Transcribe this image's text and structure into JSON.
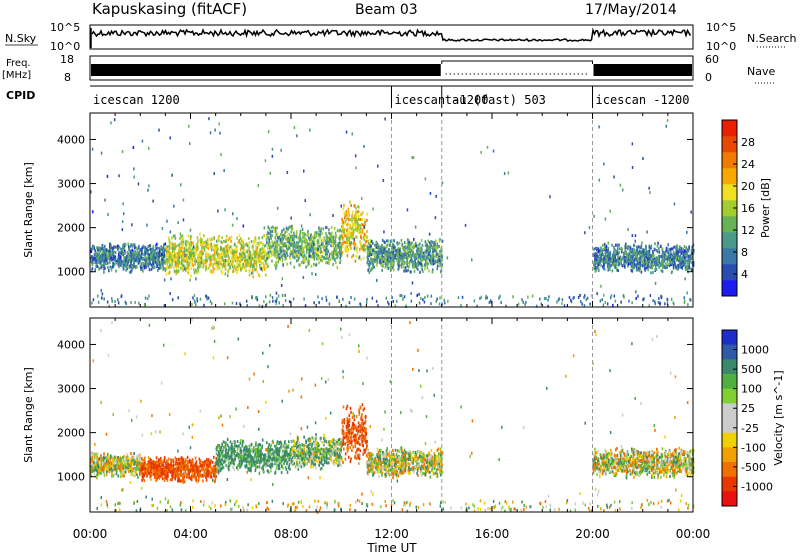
{
  "header": {
    "station": "Kapuskasing (fitACF)",
    "beam": "Beam 03",
    "date": "17/May/2014"
  },
  "noise_panel": {
    "left_label": "N.Sky",
    "left_ticks": [
      "10^5",
      "10^0"
    ],
    "right_ticks": [
      "10^5",
      "10^0"
    ],
    "right_label": "N.Search"
  },
  "freq_panel": {
    "label_line1": "Freq.",
    "label_line2": "[MHz]",
    "left_ticks": [
      "18",
      "8"
    ],
    "right_ticks": [
      "60",
      "0"
    ],
    "right_label": "Nave"
  },
  "cpid_panel": {
    "label": "CPID",
    "segments": [
      {
        "label": "icescan 1200",
        "start_hour": 0,
        "end_hour": 12
      },
      {
        "label": "icescan -1200",
        "start_hour": 12,
        "end_hour": 14
      },
      {
        "label": "tau (fast) 503",
        "start_hour": 14,
        "end_hour": 20
      },
      {
        "label": "icescan -1200",
        "start_hour": 20,
        "end_hour": 24
      }
    ]
  },
  "x_axis": {
    "label": "Time UT",
    "ticks": [
      "00:00",
      "04:00",
      "08:00",
      "12:00",
      "16:00",
      "20:00",
      "00:00"
    ]
  },
  "power_colorbar": {
    "label": "Power [dB]",
    "ticks": [
      "4",
      "8",
      "12",
      "16",
      "20",
      "24",
      "28"
    ],
    "colors": [
      "#1c1cf0",
      "#2a4bb0",
      "#3a78a8",
      "#4a9a8a",
      "#66b356",
      "#a4cc2e",
      "#f0e020",
      "#f7a900",
      "#f07b00",
      "#e84800",
      "#e82000"
    ]
  },
  "velocity_colorbar": {
    "label": "Velocity [m s^-1]",
    "ticks": [
      "1000",
      "500",
      "100",
      "25",
      "-25",
      "-100",
      "-500",
      "-1000"
    ],
    "colors": [
      "#1e2cc8",
      "#2e5aa8",
      "#3a8a6a",
      "#4fb040",
      "#80d030",
      "#cccccc",
      "#cccccc",
      "#f0d000",
      "#f0a000",
      "#f07000",
      "#e83800",
      "#e81010"
    ]
  },
  "chart_data": [
    {
      "type": "heatmap",
      "title": "Power [dB]",
      "xlabel": "Time UT",
      "ylabel": "Slant Range [km]",
      "xlim_hours": [
        0,
        24
      ],
      "ylim_km": [
        200,
        4600
      ],
      "yticks": [
        1000,
        2000,
        3000,
        4000
      ],
      "scatter_bands": [
        {
          "start_hour": 0.0,
          "end_hour": 3.0,
          "range_low": 1000,
          "range_high": 1700,
          "level": 6
        },
        {
          "start_hour": 3.0,
          "end_hour": 7.0,
          "range_low": 900,
          "range_high": 1900,
          "level": 14
        },
        {
          "start_hour": 7.0,
          "end_hour": 10.0,
          "range_low": 1100,
          "range_high": 2100,
          "level": 10
        },
        {
          "start_hour": 10.0,
          "end_hour": 11.0,
          "range_low": 1200,
          "range_high": 2700,
          "level": 16
        },
        {
          "start_hour": 11.0,
          "end_hour": 14.0,
          "range_low": 1000,
          "range_high": 1800,
          "level": 8
        },
        {
          "start_hour": 20.0,
          "end_hour": 24.0,
          "range_low": 1000,
          "range_high": 1700,
          "level": 6
        }
      ]
    },
    {
      "type": "heatmap",
      "title": "Velocity [m s^-1]",
      "xlabel": "Time UT",
      "ylabel": "Slant Range [km]",
      "xlim_hours": [
        0,
        24
      ],
      "ylim_km": [
        200,
        4600
      ],
      "yticks": [
        1000,
        2000,
        3000,
        4000
      ],
      "scatter_bands": [
        {
          "start_hour": 0.0,
          "end_hour": 2.0,
          "range_low": 1000,
          "range_high": 1600,
          "level": 0
        },
        {
          "start_hour": 2.0,
          "end_hour": 5.0,
          "range_low": 900,
          "range_high": 1500,
          "level": -300
        },
        {
          "start_hour": 5.0,
          "end_hour": 8.0,
          "range_low": 1100,
          "range_high": 1900,
          "level": 150
        },
        {
          "start_hour": 8.0,
          "end_hour": 10.0,
          "range_low": 1200,
          "range_high": 2000,
          "level": 60
        },
        {
          "start_hour": 10.0,
          "end_hour": 11.0,
          "range_low": 1300,
          "range_high": 2700,
          "level": -300
        },
        {
          "start_hour": 11.0,
          "end_hour": 14.0,
          "range_low": 1000,
          "range_high": 1700,
          "level": 0
        },
        {
          "start_hour": 20.0,
          "end_hour": 24.0,
          "range_low": 1000,
          "range_high": 1700,
          "level": 0
        }
      ]
    }
  ]
}
